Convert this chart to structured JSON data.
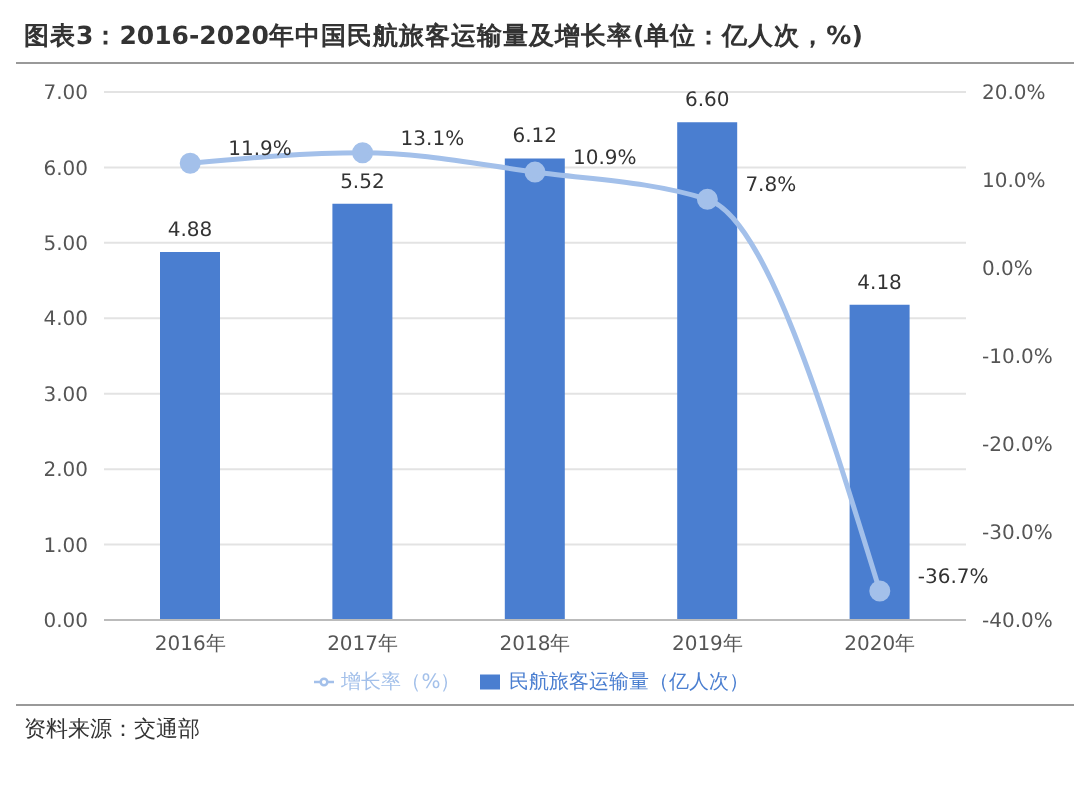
{
  "chart_data": {
    "type": "bar",
    "title": "图表3：2016-2020年中国民航旅客运输量及增长率(单位：亿人次，%)",
    "categories": [
      "2016年",
      "2017年",
      "2018年",
      "2019年",
      "2020年"
    ],
    "series": [
      {
        "name": "民航旅客运输量（亿人次）",
        "color": "#4a7ed0",
        "values": [
          4.88,
          5.52,
          6.12,
          6.6,
          4.18
        ],
        "value_labels": [
          "4.88",
          "5.52",
          "6.12",
          "6.60",
          "4.18"
        ]
      },
      {
        "name": "增长率（%）",
        "type": "line",
        "axis": "y2",
        "color": "#a3c0ea",
        "values": [
          11.9,
          13.1,
          10.9,
          7.8,
          -36.7
        ],
        "value_labels": [
          "11.9%",
          "13.1%",
          "10.9%",
          "7.8%",
          "-36.7%"
        ]
      }
    ],
    "ylim": [
      0,
      7
    ],
    "yticks": [
      {
        "value": 0,
        "label": "0.00"
      },
      {
        "value": 1,
        "label": "1.00"
      },
      {
        "value": 2,
        "label": "2.00"
      },
      {
        "value": 3,
        "label": "3.00"
      },
      {
        "value": 4,
        "label": "4.00"
      },
      {
        "value": 5,
        "label": "5.00"
      },
      {
        "value": 6,
        "label": "6.00"
      },
      {
        "value": 7,
        "label": "7.00"
      }
    ],
    "y2lim": [
      -40,
      20
    ],
    "y2ticks": [
      {
        "value": -40,
        "label": "-40.0%"
      },
      {
        "value": -30,
        "label": "-30.0%"
      },
      {
        "value": -20,
        "label": "-20.0%"
      },
      {
        "value": -10,
        "label": "-10.0%"
      },
      {
        "value": 0,
        "label": "0.0%"
      },
      {
        "value": 10,
        "label": "10.0%"
      },
      {
        "value": 20,
        "label": "20.0%"
      }
    ],
    "grid": "y",
    "legend": "bottom",
    "marker": "circle",
    "annotations": [
      "资料来源：交通部"
    ]
  }
}
